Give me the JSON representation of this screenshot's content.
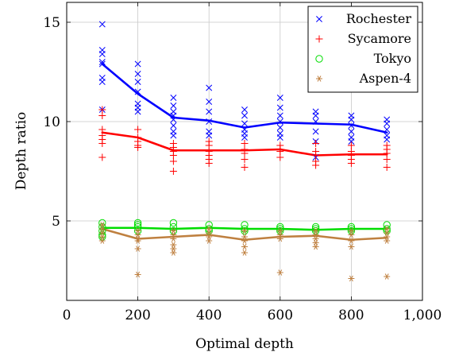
{
  "chart_data": {
    "type": "scatter",
    "xlabel": "Optimal depth",
    "ylabel": "Depth ratio",
    "xlim": [
      0,
      1000
    ],
    "ylim": [
      1,
      16
    ],
    "xticks": [
      0,
      200,
      400,
      600,
      800,
      1000
    ],
    "xtick_labels": [
      "0",
      "200",
      "400",
      "600",
      "800",
      "1,000"
    ],
    "yticks": [
      5,
      10,
      15
    ],
    "ytick_labels": [
      "5",
      "10",
      "15"
    ],
    "grid": true,
    "legend_position": "top-right",
    "series": [
      {
        "name": "Rochester",
        "color": "#0000ff",
        "marker": "x",
        "mean_x": [
          100,
          200,
          300,
          400,
          500,
          600,
          700,
          800,
          900
        ],
        "mean_y": [
          12.9,
          11.4,
          10.2,
          10.05,
          9.7,
          9.95,
          9.9,
          9.85,
          9.45
        ],
        "points": [
          [
            100,
            14.9
          ],
          [
            100,
            13.6
          ],
          [
            100,
            13.4
          ],
          [
            100,
            13.0
          ],
          [
            100,
            12.9
          ],
          [
            100,
            12.2
          ],
          [
            100,
            12.0
          ],
          [
            100,
            10.6
          ],
          [
            200,
            12.9
          ],
          [
            200,
            12.4
          ],
          [
            200,
            12.0
          ],
          [
            200,
            11.5
          ],
          [
            200,
            10.9
          ],
          [
            200,
            10.7
          ],
          [
            200,
            10.5
          ],
          [
            300,
            11.2
          ],
          [
            300,
            10.8
          ],
          [
            300,
            10.5
          ],
          [
            300,
            10.3
          ],
          [
            300,
            10.1
          ],
          [
            300,
            9.8
          ],
          [
            300,
            9.5
          ],
          [
            300,
            9.3
          ],
          [
            400,
            11.7
          ],
          [
            400,
            11.0
          ],
          [
            400,
            10.5
          ],
          [
            400,
            10.0
          ],
          [
            400,
            9.5
          ],
          [
            400,
            9.3
          ],
          [
            500,
            10.6
          ],
          [
            500,
            10.3
          ],
          [
            500,
            9.9
          ],
          [
            500,
            9.6
          ],
          [
            500,
            9.4
          ],
          [
            500,
            9.2
          ],
          [
            600,
            11.2
          ],
          [
            600,
            10.7
          ],
          [
            600,
            10.3
          ],
          [
            600,
            10.0
          ],
          [
            600,
            9.7
          ],
          [
            600,
            9.4
          ],
          [
            600,
            9.2
          ],
          [
            700,
            10.5
          ],
          [
            700,
            10.3
          ],
          [
            700,
            10.0
          ],
          [
            700,
            9.5
          ],
          [
            700,
            9.0
          ],
          [
            700,
            8.2
          ],
          [
            800,
            10.3
          ],
          [
            800,
            10.1
          ],
          [
            800,
            9.8
          ],
          [
            800,
            9.5
          ],
          [
            800,
            9.2
          ],
          [
            800,
            9.0
          ],
          [
            900,
            10.1
          ],
          [
            900,
            9.9
          ],
          [
            900,
            9.6
          ],
          [
            900,
            9.3
          ],
          [
            900,
            9.1
          ]
        ]
      },
      {
        "name": "Sycamore",
        "color": "#ff0000",
        "marker": "+",
        "mean_x": [
          100,
          200,
          300,
          400,
          500,
          600,
          700,
          800,
          900
        ],
        "mean_y": [
          9.45,
          9.2,
          8.55,
          8.55,
          8.55,
          8.6,
          8.3,
          8.35,
          8.35
        ],
        "points": [
          [
            100,
            10.6
          ],
          [
            100,
            10.3
          ],
          [
            100,
            9.6
          ],
          [
            100,
            9.3
          ],
          [
            100,
            9.1
          ],
          [
            100,
            8.9
          ],
          [
            100,
            8.2
          ],
          [
            200,
            9.6
          ],
          [
            200,
            9.2
          ],
          [
            200,
            9.0
          ],
          [
            200,
            8.8
          ],
          [
            200,
            8.7
          ],
          [
            300,
            8.9
          ],
          [
            300,
            8.7
          ],
          [
            300,
            8.5
          ],
          [
            300,
            8.3
          ],
          [
            300,
            8.0
          ],
          [
            300,
            7.5
          ],
          [
            400,
            9.0
          ],
          [
            400,
            8.8
          ],
          [
            400,
            8.5
          ],
          [
            400,
            8.3
          ],
          [
            400,
            8.1
          ],
          [
            400,
            7.9
          ],
          [
            500,
            8.9
          ],
          [
            500,
            8.6
          ],
          [
            500,
            8.4
          ],
          [
            500,
            8.1
          ],
          [
            500,
            7.7
          ],
          [
            600,
            8.8
          ],
          [
            600,
            8.6
          ],
          [
            600,
            8.5
          ],
          [
            600,
            8.2
          ],
          [
            700,
            8.9
          ],
          [
            700,
            8.5
          ],
          [
            700,
            8.3
          ],
          [
            700,
            8.0
          ],
          [
            700,
            7.8
          ],
          [
            800,
            8.8
          ],
          [
            800,
            8.5
          ],
          [
            800,
            8.3
          ],
          [
            800,
            8.1
          ],
          [
            800,
            7.9
          ],
          [
            900,
            8.8
          ],
          [
            900,
            8.6
          ],
          [
            900,
            8.4
          ],
          [
            900,
            8.1
          ],
          [
            900,
            7.7
          ]
        ]
      },
      {
        "name": "Tokyo",
        "color": "#00dd00",
        "marker": "o",
        "mean_x": [
          100,
          200,
          300,
          400,
          500,
          600,
          700,
          800,
          900
        ],
        "mean_y": [
          4.65,
          4.65,
          4.6,
          4.65,
          4.6,
          4.6,
          4.55,
          4.6,
          4.6
        ],
        "points": [
          [
            100,
            4.9
          ],
          [
            100,
            4.7
          ],
          [
            100,
            4.5
          ],
          [
            100,
            4.3
          ],
          [
            100,
            4.2
          ],
          [
            200,
            4.9
          ],
          [
            200,
            4.8
          ],
          [
            200,
            4.7
          ],
          [
            200,
            4.5
          ],
          [
            300,
            4.9
          ],
          [
            300,
            4.7
          ],
          [
            300,
            4.5
          ],
          [
            400,
            4.8
          ],
          [
            400,
            4.6
          ],
          [
            400,
            4.5
          ],
          [
            500,
            4.8
          ],
          [
            500,
            4.6
          ],
          [
            500,
            4.5
          ],
          [
            600,
            4.7
          ],
          [
            600,
            4.6
          ],
          [
            600,
            4.5
          ],
          [
            700,
            4.7
          ],
          [
            700,
            4.6
          ],
          [
            700,
            4.5
          ],
          [
            800,
            4.7
          ],
          [
            800,
            4.6
          ],
          [
            800,
            4.5
          ],
          [
            900,
            4.8
          ],
          [
            900,
            4.6
          ],
          [
            900,
            4.5
          ]
        ]
      },
      {
        "name": "Aspen-4",
        "color": "#bf8040",
        "marker": "*",
        "mean_x": [
          100,
          200,
          300,
          400,
          500,
          600,
          700,
          800,
          900
        ],
        "mean_y": [
          4.6,
          4.1,
          4.2,
          4.3,
          4.05,
          4.2,
          4.25,
          4.05,
          4.15
        ],
        "points": [
          [
            100,
            4.8
          ],
          [
            100,
            4.6
          ],
          [
            100,
            4.4
          ],
          [
            100,
            4.2
          ],
          [
            100,
            4.0
          ],
          [
            200,
            4.5
          ],
          [
            200,
            4.3
          ],
          [
            200,
            4.1
          ],
          [
            200,
            4.0
          ],
          [
            200,
            3.6
          ],
          [
            200,
            2.3
          ],
          [
            300,
            4.5
          ],
          [
            300,
            4.3
          ],
          [
            300,
            4.1
          ],
          [
            300,
            3.8
          ],
          [
            300,
            3.6
          ],
          [
            300,
            3.4
          ],
          [
            400,
            4.6
          ],
          [
            400,
            4.4
          ],
          [
            400,
            4.2
          ],
          [
            400,
            4.0
          ],
          [
            500,
            4.5
          ],
          [
            500,
            4.2
          ],
          [
            500,
            4.0
          ],
          [
            500,
            3.7
          ],
          [
            500,
            3.4
          ],
          [
            600,
            4.5
          ],
          [
            600,
            4.3
          ],
          [
            600,
            4.1
          ],
          [
            600,
            2.4
          ],
          [
            700,
            4.5
          ],
          [
            700,
            4.3
          ],
          [
            700,
            4.1
          ],
          [
            700,
            3.9
          ],
          [
            700,
            3.7
          ],
          [
            800,
            4.5
          ],
          [
            800,
            4.3
          ],
          [
            800,
            4.0
          ],
          [
            800,
            3.7
          ],
          [
            800,
            2.1
          ],
          [
            900,
            4.6
          ],
          [
            900,
            4.4
          ],
          [
            900,
            4.2
          ],
          [
            900,
            4.0
          ],
          [
            900,
            2.2
          ]
        ]
      }
    ]
  }
}
